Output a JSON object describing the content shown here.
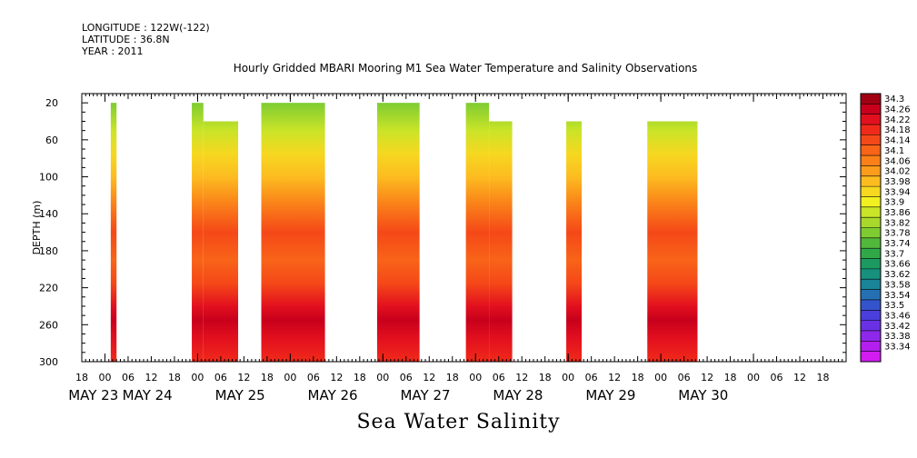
{
  "header": {
    "longitude": "LONGITUDE : 122W(-122)",
    "latitude": "LATITUDE : 36.8N",
    "year": "YEAR : 2011"
  },
  "chart_data": {
    "type": "heatmap",
    "title": "Hourly Gridded MBARI Mooring M1 Sea Water Temperature and Salinity Observations",
    "subtitle": "Sea Water Salinity",
    "ylabel": "DEPTH (m)",
    "xlabel": "",
    "ylim": [
      300,
      10
    ],
    "y_ticks": [
      20,
      60,
      100,
      140,
      180,
      220,
      260,
      300
    ],
    "x_unit": "hours since 2011-05-22 18:00",
    "xlim": [
      0,
      198
    ],
    "x_ticks": [
      {
        "t": 0,
        "label": "18"
      },
      {
        "t": 6,
        "label": "00"
      },
      {
        "t": 12,
        "label": "06"
      },
      {
        "t": 18,
        "label": "12"
      },
      {
        "t": 24,
        "label": "18"
      },
      {
        "t": 30,
        "label": "00"
      },
      {
        "t": 36,
        "label": "06"
      },
      {
        "t": 42,
        "label": "12"
      },
      {
        "t": 48,
        "label": "18"
      },
      {
        "t": 54,
        "label": "00"
      },
      {
        "t": 60,
        "label": "06"
      },
      {
        "t": 66,
        "label": "12"
      },
      {
        "t": 72,
        "label": "18"
      },
      {
        "t": 78,
        "label": "00"
      },
      {
        "t": 84,
        "label": "06"
      },
      {
        "t": 90,
        "label": "12"
      },
      {
        "t": 96,
        "label": "18"
      },
      {
        "t": 102,
        "label": "00"
      },
      {
        "t": 108,
        "label": "06"
      },
      {
        "t": 114,
        "label": "12"
      },
      {
        "t": 120,
        "label": "18"
      },
      {
        "t": 126,
        "label": "00"
      },
      {
        "t": 132,
        "label": "06"
      },
      {
        "t": 138,
        "label": "12"
      },
      {
        "t": 144,
        "label": "18"
      },
      {
        "t": 150,
        "label": "00"
      },
      {
        "t": 156,
        "label": "06"
      },
      {
        "t": 162,
        "label": "12"
      },
      {
        "t": 168,
        "label": "18"
      },
      {
        "t": 174,
        "label": "00"
      },
      {
        "t": 180,
        "label": "06"
      },
      {
        "t": 186,
        "label": "12"
      },
      {
        "t": 192,
        "label": "18"
      },
      {
        "t": 198,
        "label": "00"
      }
    ],
    "date_labels": [
      {
        "t": 3,
        "label": "MAY 23"
      },
      {
        "t": 17,
        "label": "MAY 24"
      },
      {
        "t": 41,
        "label": "MAY 25"
      },
      {
        "t": 65,
        "label": "MAY 26"
      },
      {
        "t": 89,
        "label": "MAY 27"
      },
      {
        "t": 113,
        "label": "MAY 28"
      },
      {
        "t": 137,
        "label": "MAY 29"
      },
      {
        "t": 161,
        "label": "MAY 30"
      }
    ],
    "data_blocks": [
      {
        "t_start": 7.5,
        "t_end": 9,
        "top_depth": 20,
        "steps": []
      },
      {
        "t_start": 28.5,
        "t_end": 40.5,
        "top_depth": 20,
        "steps": [
          {
            "t": 31.5,
            "top_depth": 40
          }
        ]
      },
      {
        "t_start": 46.5,
        "t_end": 63,
        "top_depth": 20,
        "steps": []
      },
      {
        "t_start": 76.5,
        "t_end": 87.5,
        "top_depth": 20,
        "steps": []
      },
      {
        "t_start": 99.5,
        "t_end": 111.5,
        "top_depth": 20,
        "steps": [
          {
            "t": 105.5,
            "top_depth": 40
          }
        ]
      },
      {
        "t_start": 125.5,
        "t_end": 129.5,
        "top_depth": 40,
        "steps": []
      },
      {
        "t_start": 146.5,
        "t_end": 159.5,
        "top_depth": 40,
        "steps": []
      }
    ],
    "depth_profile": [
      {
        "depth": 20,
        "salinity": 33.78
      },
      {
        "depth": 50,
        "salinity": 33.84
      },
      {
        "depth": 75,
        "salinity": 33.92
      },
      {
        "depth": 100,
        "salinity": 33.96
      },
      {
        "depth": 130,
        "salinity": 34.06
      },
      {
        "depth": 160,
        "salinity": 34.12
      },
      {
        "depth": 190,
        "salinity": 34.1
      },
      {
        "depth": 215,
        "salinity": 34.14
      },
      {
        "depth": 240,
        "salinity": 34.2
      },
      {
        "depth": 255,
        "salinity": 34.26
      },
      {
        "depth": 275,
        "salinity": 34.22
      },
      {
        "depth": 300,
        "salinity": 34.18
      }
    ],
    "colorbar": {
      "labels": [
        "34.3",
        "34.26",
        "34.22",
        "34.18",
        "34.14",
        "34.1",
        "34.06",
        "34.02",
        "33.98",
        "33.94",
        "33.9",
        "33.86",
        "33.82",
        "33.78",
        "33.74",
        "33.7",
        "33.66",
        "33.62",
        "33.58",
        "33.54",
        "33.5",
        "33.46",
        "33.42",
        "33.38",
        "33.34"
      ],
      "colors": [
        "#a00012",
        "#c8001c",
        "#e2101e",
        "#f02a1a",
        "#f54818",
        "#f86418",
        "#fa8019",
        "#fc9c1c",
        "#fcbc20",
        "#f6d820",
        "#f2f020",
        "#cae428",
        "#a8d82c",
        "#7ecc32",
        "#52b83c",
        "#30a848",
        "#1c9a62",
        "#18907e",
        "#1a8498",
        "#2470b2",
        "#3454cc",
        "#4a3edc",
        "#6a30e4",
        "#8e28ea",
        "#b41eee",
        "#d21cf2"
      ]
    }
  }
}
